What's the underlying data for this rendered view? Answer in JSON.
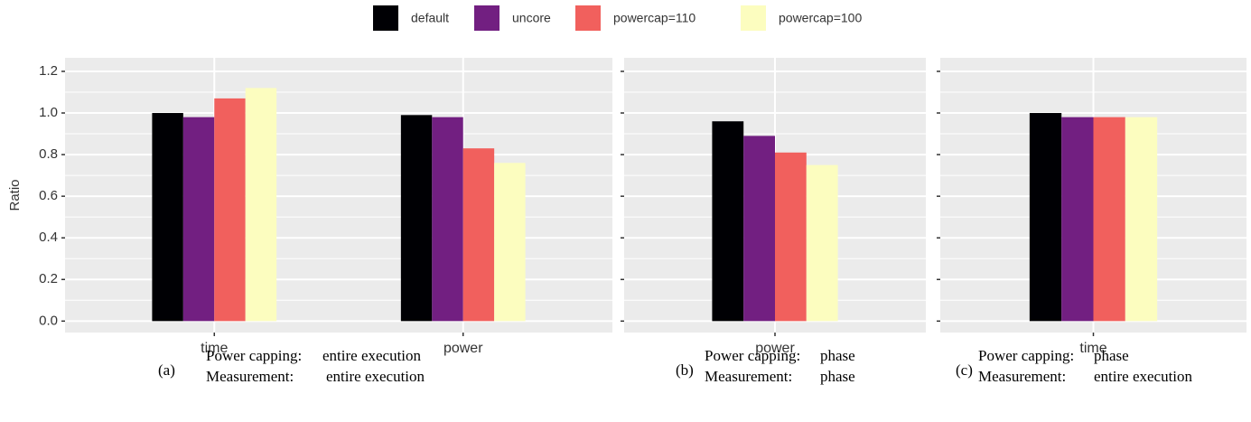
{
  "legend": [
    {
      "name": "default",
      "color": "#000004"
    },
    {
      "name": "uncore",
      "color": "#721f81"
    },
    {
      "name": "powercap=110",
      "color": "#f1605d"
    },
    {
      "name": "powercap=100",
      "color": "#fcfdbf"
    }
  ],
  "y_label": "Ratio",
  "chart_data": [
    {
      "type": "bar",
      "categories": [
        "time",
        "power"
      ],
      "series": [
        {
          "values": [
            1.0,
            0.99
          ]
        },
        {
          "values": [
            0.98,
            0.98
          ]
        },
        {
          "values": [
            1.07,
            0.83
          ]
        },
        {
          "values": [
            1.12,
            0.76
          ]
        }
      ],
      "ylim": [
        -0.055,
        1.265
      ],
      "yticks": [
        {
          "value": 0,
          "label": "0.0"
        },
        0.2,
        0.4,
        0.6,
        0.8,
        {
          "value": 1,
          "label": "1.0"
        },
        1.2
      ],
      "grid": true,
      "caption": {
        "label": "(a)",
        "rows": [
          [
            "Power capping:",
            "entire execution"
          ],
          [
            "Measurement:",
            "entire execution"
          ]
        ]
      }
    },
    {
      "type": "bar",
      "categories": [
        "power"
      ],
      "series": [
        {
          "values": [
            0.96
          ]
        },
        {
          "values": [
            0.89
          ]
        },
        {
          "values": [
            0.81
          ]
        },
        {
          "values": [
            0.75
          ]
        }
      ],
      "ylim": [
        -0.055,
        1.265
      ],
      "yticks": [
        0,
        0.2,
        0.4,
        0.6,
        0.8,
        1,
        1.2
      ],
      "grid": true,
      "caption": {
        "label": "(b)",
        "rows": [
          [
            "Power capping:",
            "phase"
          ],
          [
            "Measurement:",
            "phase"
          ]
        ]
      }
    },
    {
      "type": "bar",
      "categories": [
        "time"
      ],
      "series": [
        {
          "values": [
            1.0
          ]
        },
        {
          "values": [
            0.98
          ]
        },
        {
          "values": [
            0.98
          ]
        },
        {
          "values": [
            0.98
          ]
        }
      ],
      "ylim": [
        -0.055,
        1.265
      ],
      "yticks": [
        0,
        0.2,
        0.4,
        0.6,
        0.8,
        1,
        1.2
      ],
      "grid": true,
      "caption": {
        "label": "(c)",
        "rows": [
          [
            "Power capping:",
            "phase"
          ],
          [
            "Measurement:",
            "entire execution"
          ]
        ]
      }
    }
  ]
}
